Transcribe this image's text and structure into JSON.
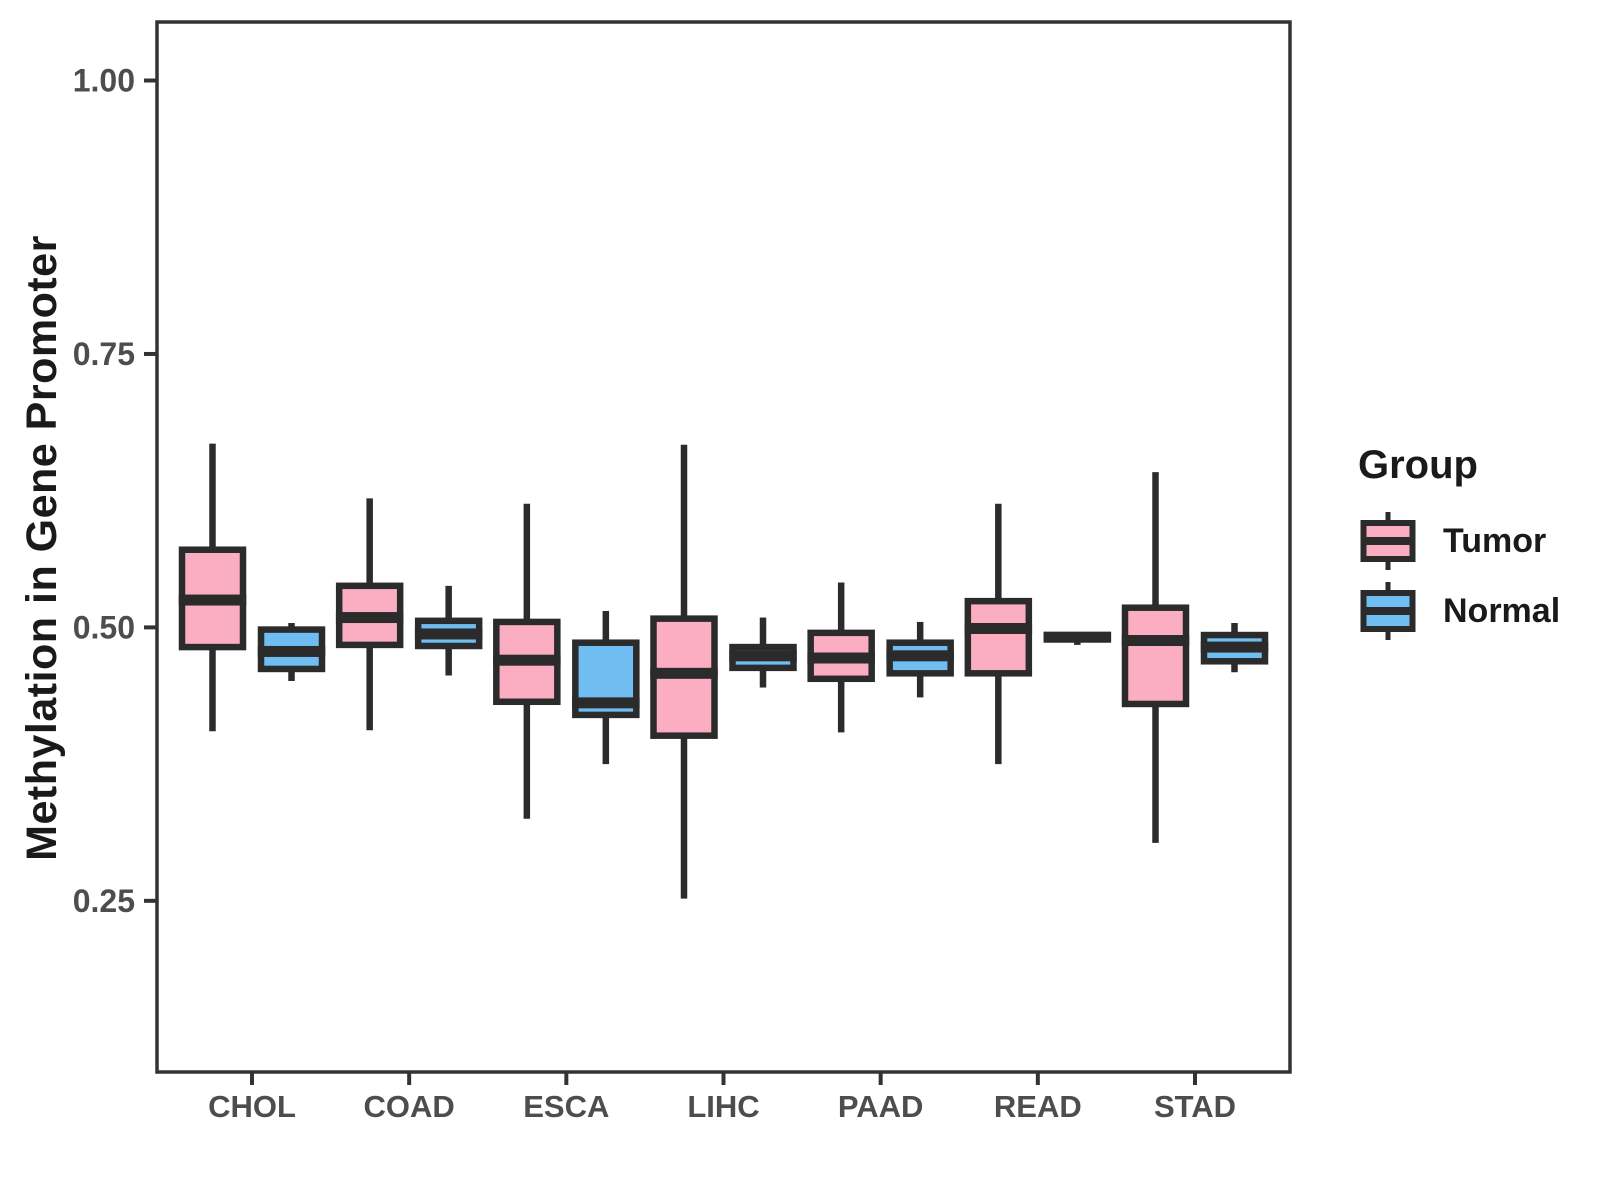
{
  "page": {
    "background": "#FFFFFF"
  },
  "colors": {
    "tumor_fill": "#FBAEC1",
    "normal_fill": "#70BDF2",
    "box_stroke": "#2B2B2B",
    "panel_border": "#333333",
    "tick_label": "#4D4D4D",
    "axis_title": "#1A1A1A"
  },
  "legend": {
    "title": "Group",
    "items": [
      {
        "label": "Tumor",
        "color": "#FBAEC1"
      },
      {
        "label": "Normal",
        "color": "#70BDF2"
      }
    ]
  },
  "chart_data": {
    "type": "boxplot",
    "title": "",
    "xlabel": "",
    "ylabel": "Methylation in Gene Promoter",
    "categories": [
      "CHOL",
      "COAD",
      "ESCA",
      "LIHC",
      "PAAD",
      "READ",
      "STAD"
    ],
    "y_ticks": [
      0.25,
      0.5,
      0.75,
      1.0
    ],
    "y_tick_labels": [
      "0.25",
      "0.50",
      "0.75",
      "1.00"
    ],
    "ylim": [
      0.0935,
      1.0535
    ],
    "grid": false,
    "legend_position": "right",
    "series": [
      {
        "name": "Tumor",
        "color": "#FBAEC1",
        "boxes": [
          {
            "category": "CHOL",
            "whisker_low": 0.405,
            "q1": 0.482,
            "median": 0.525,
            "q3": 0.571,
            "whisker_high": 0.668
          },
          {
            "category": "COAD",
            "whisker_low": 0.406,
            "q1": 0.484,
            "median": 0.509,
            "q3": 0.538,
            "whisker_high": 0.618
          },
          {
            "category": "ESCA",
            "whisker_low": 0.325,
            "q1": 0.432,
            "median": 0.47,
            "q3": 0.505,
            "whisker_high": 0.613
          },
          {
            "category": "LIHC",
            "whisker_low": 0.252,
            "q1": 0.401,
            "median": 0.458,
            "q3": 0.508,
            "whisker_high": 0.667
          },
          {
            "category": "PAAD",
            "whisker_low": 0.404,
            "q1": 0.453,
            "median": 0.472,
            "q3": 0.495,
            "whisker_high": 0.541
          },
          {
            "category": "READ",
            "whisker_low": 0.375,
            "q1": 0.458,
            "median": 0.499,
            "q3": 0.524,
            "whisker_high": 0.613
          },
          {
            "category": "STAD",
            "whisker_low": 0.303,
            "q1": 0.43,
            "median": 0.488,
            "q3": 0.518,
            "whisker_high": 0.642
          }
        ]
      },
      {
        "name": "Normal",
        "color": "#70BDF2",
        "boxes": [
          {
            "category": "CHOL",
            "whisker_low": 0.451,
            "q1": 0.462,
            "median": 0.478,
            "q3": 0.498,
            "whisker_high": 0.504
          },
          {
            "category": "COAD",
            "whisker_low": 0.456,
            "q1": 0.483,
            "median": 0.494,
            "q3": 0.506,
            "whisker_high": 0.538
          },
          {
            "category": "ESCA",
            "whisker_low": 0.375,
            "q1": 0.42,
            "median": 0.431,
            "q3": 0.486,
            "whisker_high": 0.515
          },
          {
            "category": "LIHC",
            "whisker_low": 0.445,
            "q1": 0.463,
            "median": 0.474,
            "q3": 0.482,
            "whisker_high": 0.509
          },
          {
            "category": "PAAD",
            "whisker_low": 0.436,
            "q1": 0.458,
            "median": 0.474,
            "q3": 0.486,
            "whisker_high": 0.505
          },
          {
            "category": "READ",
            "whisker_low": 0.484,
            "q1": 0.49,
            "median": 0.491,
            "q3": 0.493,
            "whisker_high": 0.493
          },
          {
            "category": "STAD",
            "whisker_low": 0.459,
            "q1": 0.469,
            "median": 0.482,
            "q3": 0.493,
            "whisker_high": 0.504
          }
        ]
      }
    ]
  }
}
